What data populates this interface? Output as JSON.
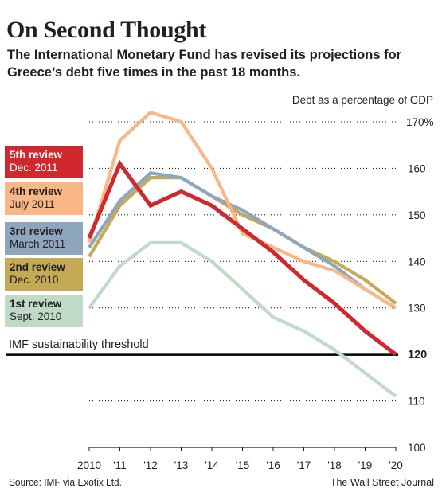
{
  "title": "On Second Thought",
  "subtitle": "The International Monetary Fund has revised its projections for Greece’s debt five times in the past 18 months.",
  "source": "Source: IMF via Exotix Ltd.",
  "credit": "The Wall Street Journal",
  "chart_data": {
    "type": "line",
    "ylabel": "Debt as a percentage of GDP",
    "ylim": [
      100,
      170
    ],
    "yticks": [
      {
        "value": 170,
        "label": "170%"
      },
      {
        "value": 160,
        "label": "160"
      },
      {
        "value": 150,
        "label": "150"
      },
      {
        "value": 140,
        "label": "140"
      },
      {
        "value": 130,
        "label": "130"
      },
      {
        "value": 120,
        "label": "120"
      },
      {
        "value": 110,
        "label": "110"
      },
      {
        "value": 100,
        "label": "100"
      }
    ],
    "x": [
      2010,
      2011,
      2012,
      2013,
      2014,
      2015,
      2016,
      2017,
      2018,
      2019,
      2020
    ],
    "xticklabels": [
      "2010",
      "'11",
      "'12",
      "'13",
      "'14",
      "'15",
      "'16",
      "'17",
      "'18",
      "'19",
      "'20"
    ],
    "grid": "dotted horizontal",
    "series": [
      {
        "name": "1st review",
        "date": "Sept. 2010",
        "color": "#bfdac7",
        "legend_text_color": "#231f20",
        "values": [
          130,
          139,
          144,
          144,
          140,
          134,
          128,
          125,
          121,
          116,
          111
        ]
      },
      {
        "name": "2nd review",
        "date": "Dec. 2010",
        "color": "#c4aa55",
        "legend_text_color": "#231f20",
        "values": [
          141,
          152,
          158,
          158,
          154,
          150,
          147,
          143,
          140,
          136,
          131
        ]
      },
      {
        "name": "3rd review",
        "date": "March 2011",
        "color": "#8ea6bd",
        "legend_text_color": "#231f20",
        "values": [
          143,
          153,
          159,
          158,
          154,
          151,
          147,
          143,
          139,
          134,
          130
        ]
      },
      {
        "name": "4th review",
        "date": "July 2011",
        "color": "#f8b784",
        "legend_text_color": "#231f20",
        "values": [
          144,
          166,
          172,
          170,
          160,
          146,
          143,
          140,
          138,
          134,
          130
        ]
      },
      {
        "name": "5th review",
        "date": "Dec. 2011",
        "color": "#d1282e",
        "legend_text_color": "#ffffff",
        "values": [
          145,
          161,
          152,
          155,
          152,
          147,
          142,
          136,
          131,
          125,
          120
        ]
      }
    ],
    "annotations": [
      {
        "type": "hline",
        "value": 120,
        "label": "IMF sustainability threshold",
        "value_label": "120",
        "color": "#000000"
      }
    ]
  }
}
